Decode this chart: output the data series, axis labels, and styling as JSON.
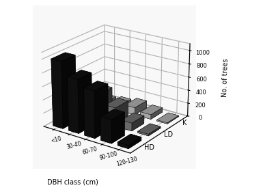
{
  "categories": [
    "<10",
    "30-40",
    "60-70",
    "90-100",
    "120-130"
  ],
  "series": [
    "HD",
    "LD",
    "K"
  ],
  "values": {
    "HD": [
      1000,
      800,
      700,
      350,
      50
    ],
    "LD": [
      280,
      420,
      280,
      120,
      25
    ],
    "K": [
      40,
      70,
      110,
      70,
      15
    ]
  },
  "colors": [
    "#111111",
    "#777777",
    "#bbbbbb"
  ],
  "ylabel": "No. of trees",
  "xlabel": "DBH class (cm)",
  "yticks": [
    0,
    200,
    400,
    600,
    800,
    1000
  ],
  "zlim": [
    0,
    1100
  ],
  "elev": 22,
  "azim": -55
}
